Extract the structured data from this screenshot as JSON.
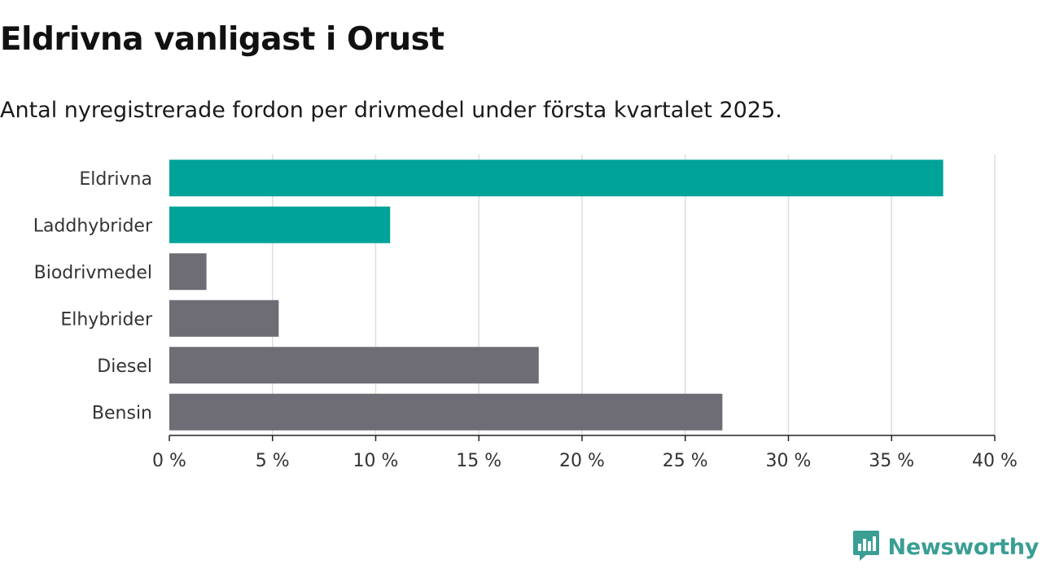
{
  "header": {
    "title": "Eldrivna vanligast i Orust",
    "subtitle": "Antal nyregistrerade fordon per drivmedel under första kvartalet 2025."
  },
  "chart_data": {
    "type": "bar",
    "orientation": "horizontal",
    "categories": [
      "Eldrivna",
      "Laddhybrider",
      "Biodrivmedel",
      "Elhybrider",
      "Diesel",
      "Bensin"
    ],
    "values": [
      37.5,
      10.7,
      1.8,
      5.3,
      17.9,
      26.8
    ],
    "bar_colors": [
      "#00a398",
      "#00a398",
      "#6e6c75",
      "#6e6c75",
      "#6e6c75",
      "#6e6c75"
    ],
    "xlim": [
      0,
      40
    ],
    "xticks": [
      0,
      5,
      10,
      15,
      20,
      25,
      30,
      35,
      40
    ],
    "tick_labels": [
      "0 %",
      "5 %",
      "10 %",
      "15 %",
      "20 %",
      "25 %",
      "30 %",
      "35 %",
      "40 %"
    ],
    "grid": true
  },
  "branding": {
    "name": "Newsworthy",
    "color": "#3a9e94",
    "icon": "bar-chart-logo-icon"
  }
}
